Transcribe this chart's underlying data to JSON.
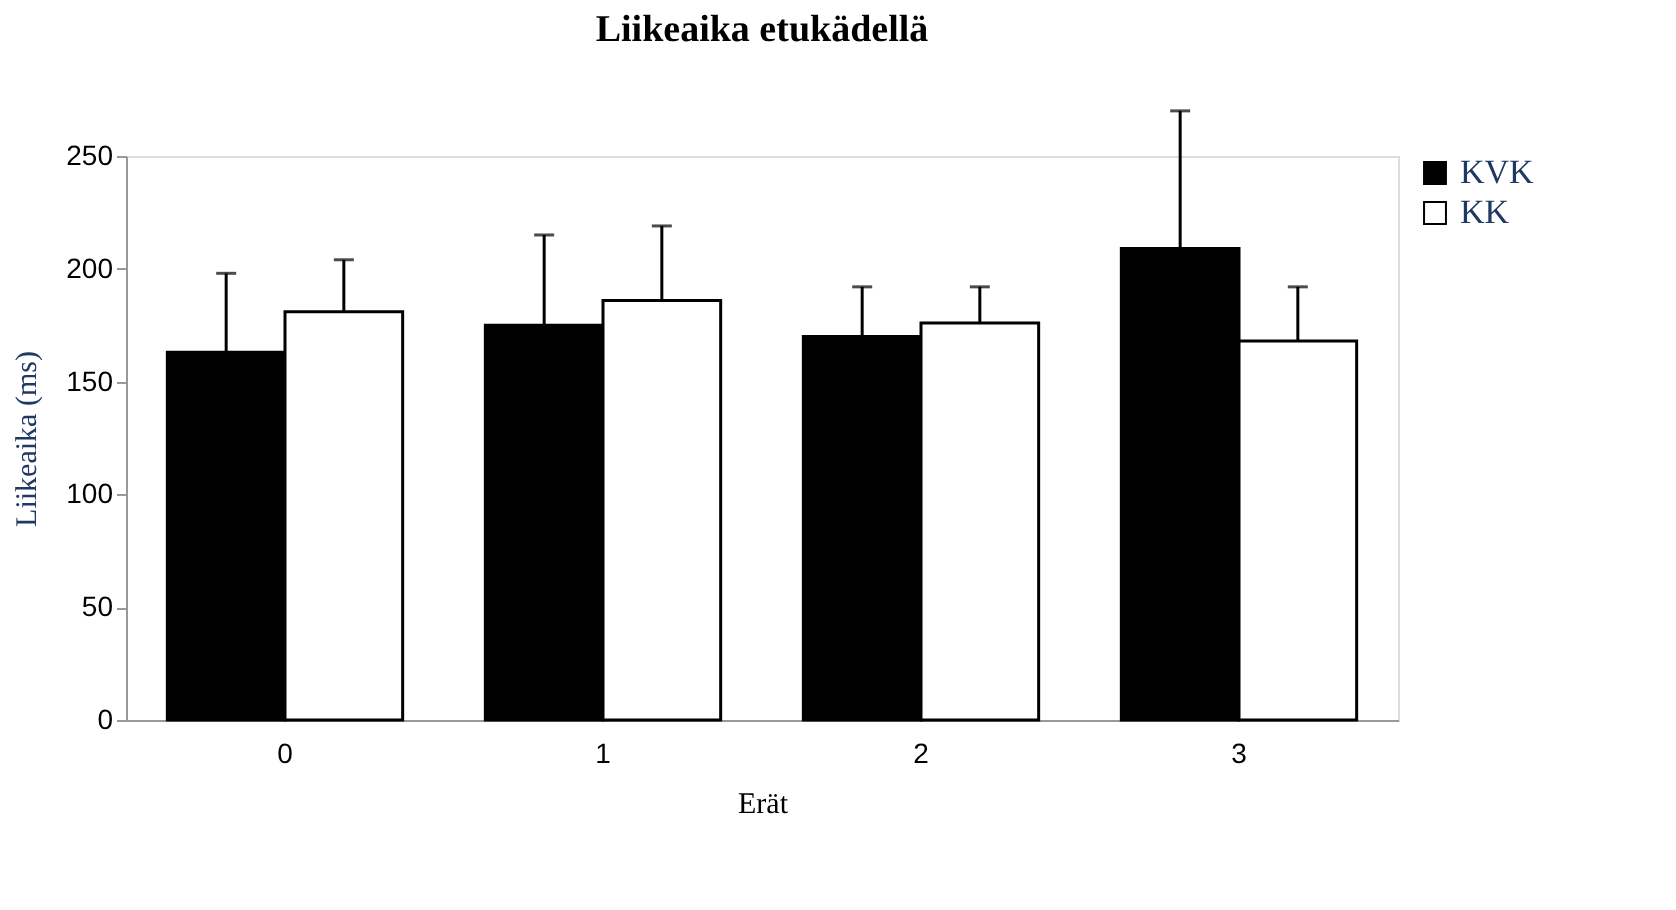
{
  "chart_data": {
    "type": "bar",
    "title": "Liikeaika etukädellä",
    "xlabel": "Erät",
    "ylabel": "Liikeaika  (ms)",
    "categories": [
      "0",
      "1",
      "2",
      "3"
    ],
    "series": [
      {
        "name": "KVK",
        "color": "#000000",
        "values": [
          163,
          175,
          170,
          209
        ],
        "errors": [
          35,
          40,
          22,
          61
        ]
      },
      {
        "name": "KK",
        "color": "#ffffff",
        "values": [
          181,
          186,
          176,
          168
        ],
        "errors": [
          23,
          33,
          16,
          24
        ]
      }
    ],
    "ylim": [
      0,
      250
    ],
    "yticks": [
      0,
      50,
      100,
      150,
      200,
      250
    ],
    "grid": false,
    "legend": "top right"
  }
}
